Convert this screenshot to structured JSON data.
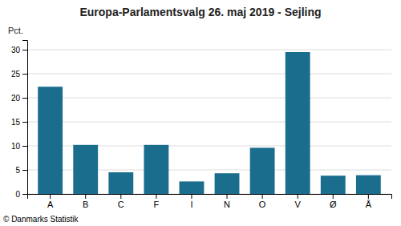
{
  "chart_data": {
    "type": "bar",
    "title": "Europa-Parlamentsvalg 26. maj 2019 - Sejling",
    "categories": [
      "A",
      "B",
      "C",
      "F",
      "I",
      "N",
      "O",
      "V",
      "Ø",
      "Å"
    ],
    "values": [
      22.3,
      10.2,
      4.5,
      10.2,
      2.6,
      4.3,
      9.6,
      29.5,
      3.8,
      3.9
    ],
    "color": "#1b6d8e",
    "ylabel": "Pct.",
    "ylim": [
      0,
      32
    ],
    "yticks": [
      0,
      5,
      10,
      15,
      20,
      25,
      30
    ],
    "grid": true,
    "annotations": [
      "© Danmarks Statistik"
    ]
  }
}
